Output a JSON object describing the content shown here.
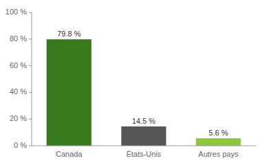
{
  "chart_data": {
    "type": "bar",
    "categories": [
      "Canada",
      "États-Unis",
      "Autres pays"
    ],
    "values": [
      79.8,
      14.5,
      5.6
    ],
    "value_labels": [
      "79.8 %",
      "14.5 %",
      "5.6 %"
    ],
    "colors": [
      "#3a7a1e",
      "#555555",
      "#8dc63f"
    ],
    "ylim": [
      0,
      100
    ],
    "yticks": [
      {
        "value": 0,
        "label": "0 %"
      },
      {
        "value": 20,
        "label": "20 %"
      },
      {
        "value": 40,
        "label": "40 %"
      },
      {
        "value": 60,
        "label": "60 %"
      },
      {
        "value": 80,
        "label": "80 %"
      },
      {
        "value": 100,
        "label": "100 %"
      }
    ],
    "data_labels": true,
    "grid": false
  }
}
